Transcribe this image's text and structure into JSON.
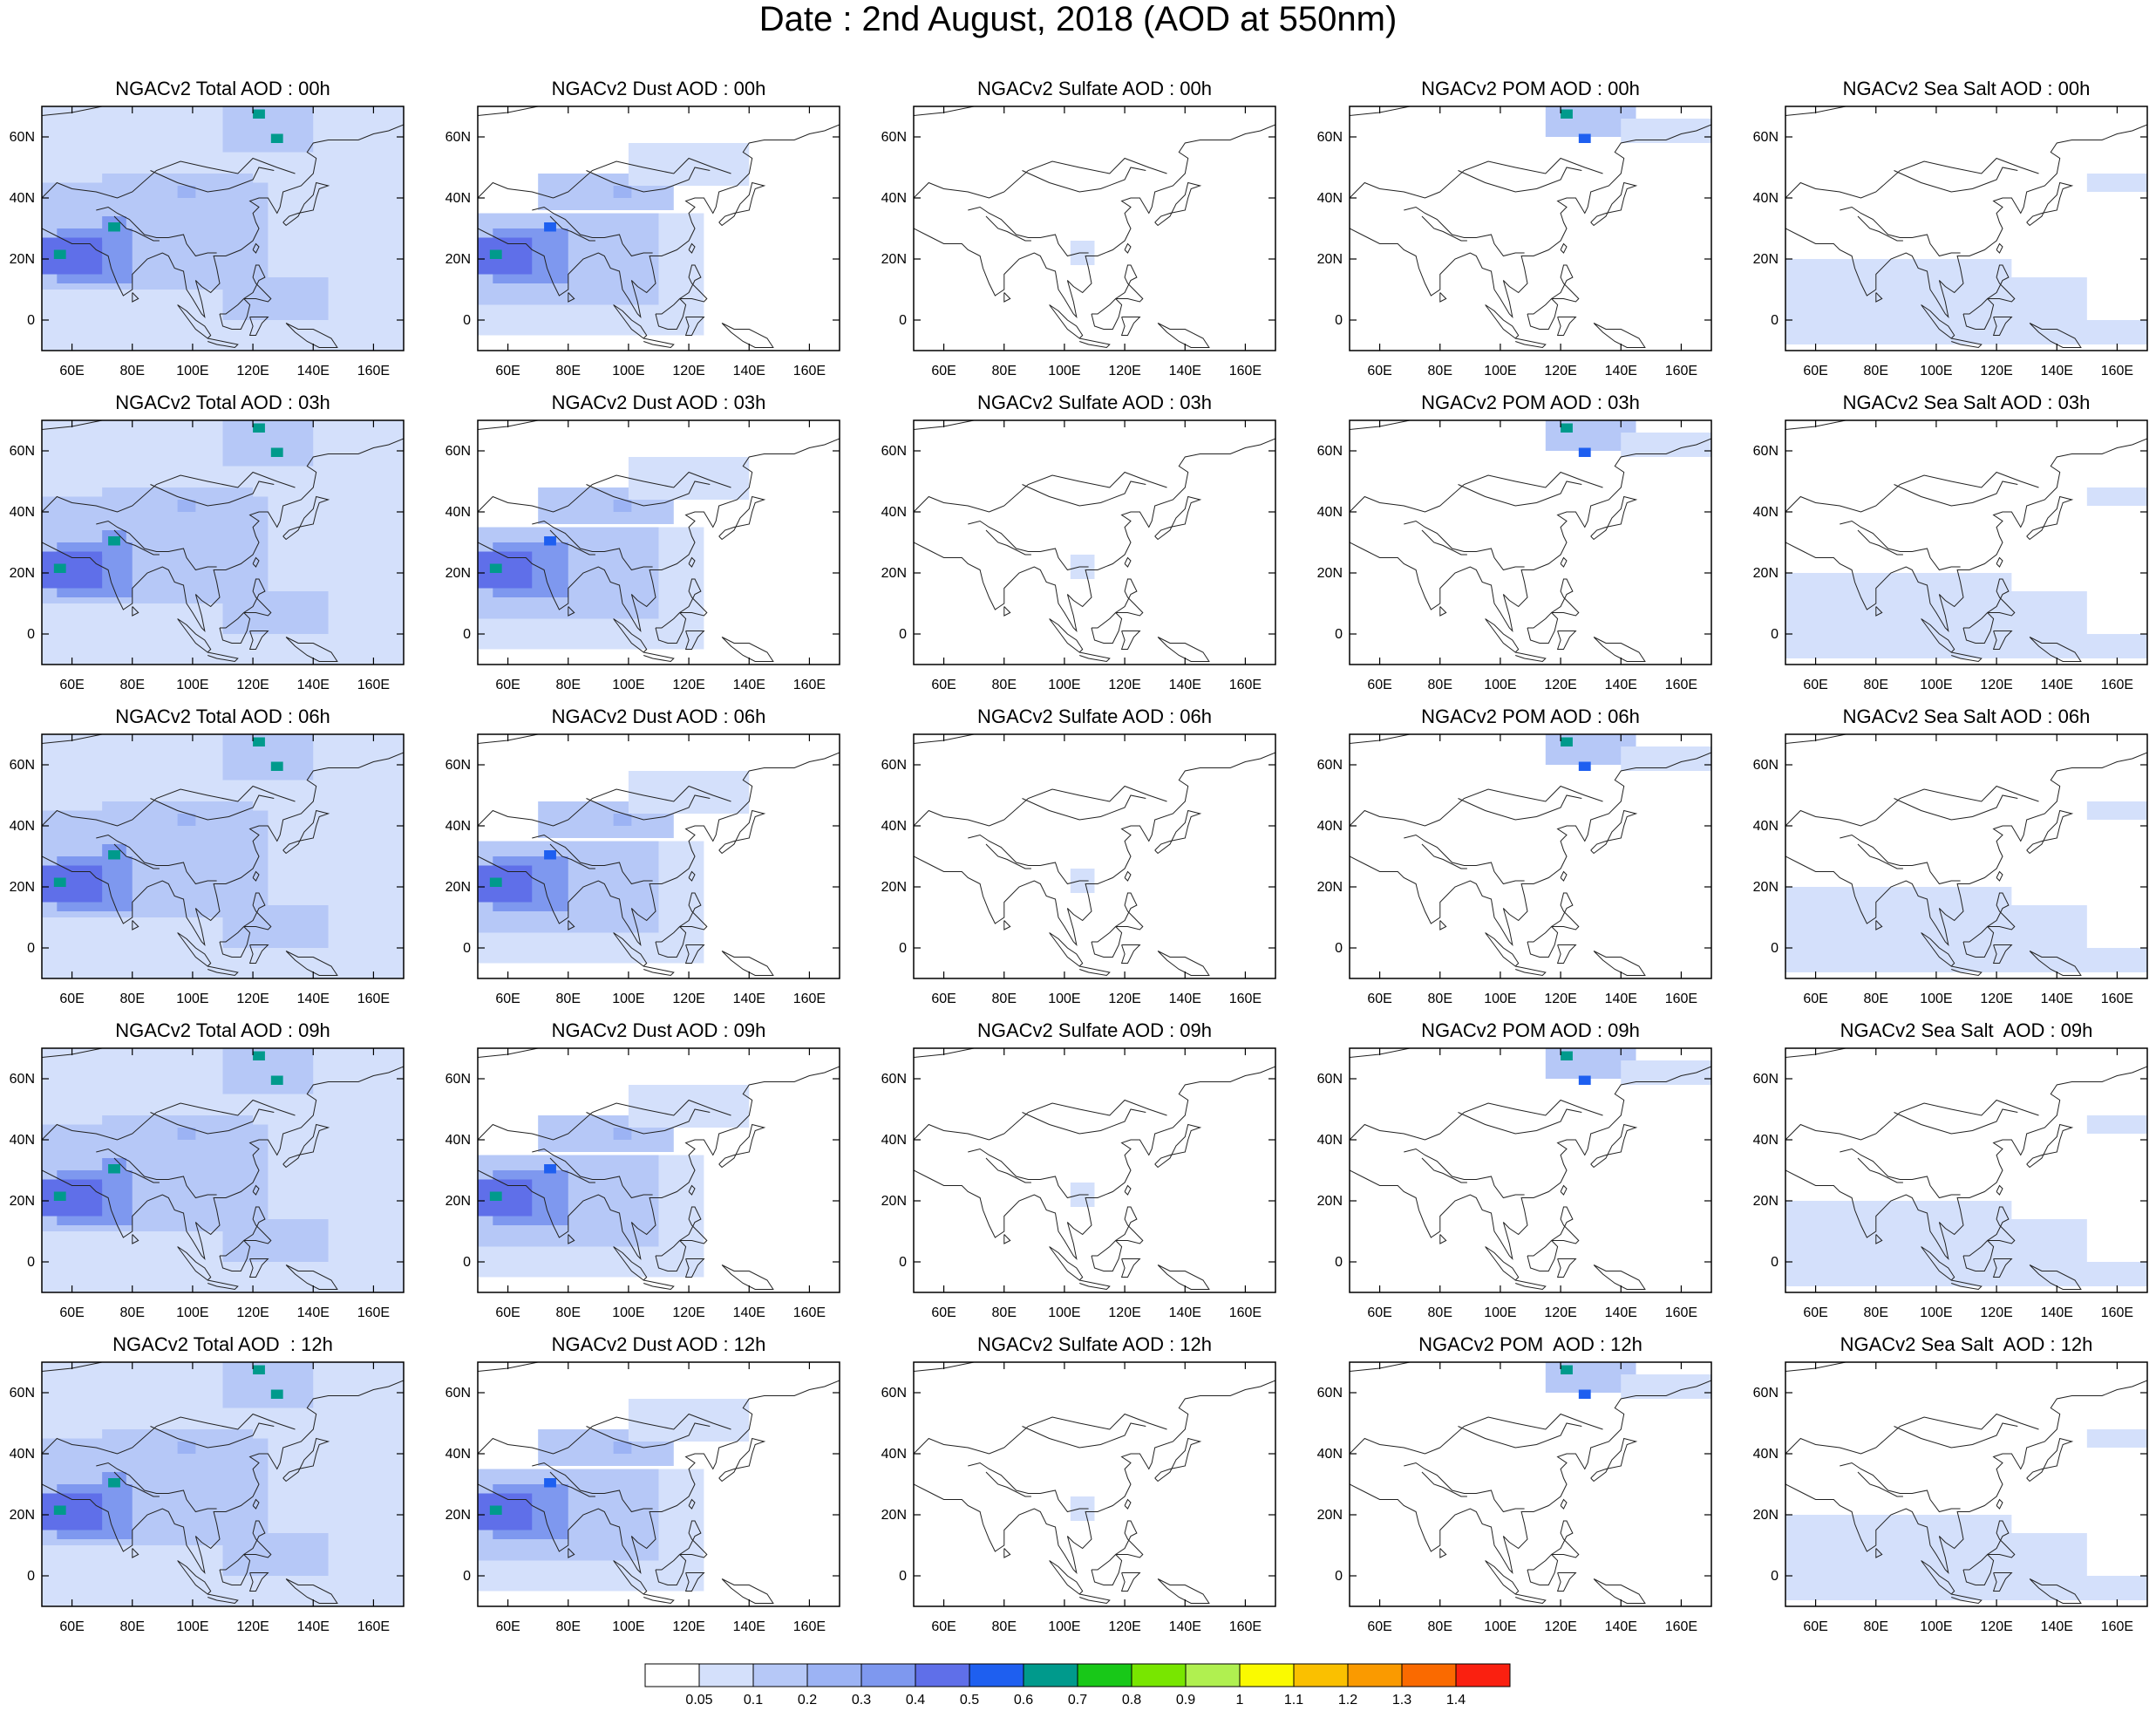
{
  "title": "Date : 2nd August, 2018 (AOD at 550nm)",
  "colors": {
    "levels": [
      "#ffffff",
      "#d4e0fb",
      "#b6c8f7",
      "#9cb3f4",
      "#7e98ef",
      "#5f6fe9",
      "#1e5ff0",
      "#009a8c",
      "#18c818",
      "#78e600",
      "#b0f050",
      "#fafa00",
      "#fac000",
      "#fa9a00",
      "#fa6a00",
      "#fa2010"
    ]
  },
  "colorbar": {
    "labels": [
      "0.05",
      "0.1",
      "0.2",
      "0.3",
      "0.4",
      "0.5",
      "0.6",
      "0.7",
      "0.8",
      "0.9",
      "1",
      "1.1",
      "1.2",
      "1.3",
      "1.4"
    ]
  },
  "chart_data": {
    "type": "heatmap",
    "x_ticks": [
      "60E",
      "80E",
      "100E",
      "120E",
      "140E",
      "160E"
    ],
    "x_tick_values": [
      60,
      80,
      100,
      120,
      140,
      160
    ],
    "y_ticks": [
      "60N",
      "40N",
      "20N",
      "0"
    ],
    "y_tick_values": [
      60,
      40,
      20,
      0
    ],
    "xlim": [
      50,
      170
    ],
    "ylim": [
      -10,
      70
    ],
    "panels": [
      {
        "title": "NGACv2 Total AOD : 00h",
        "field": "total"
      },
      {
        "title": "NGACv2 Dust AOD : 00h",
        "field": "dust"
      },
      {
        "title": "NGACv2 Sulfate AOD : 00h",
        "field": "sulfate"
      },
      {
        "title": "NGACv2 POM AOD : 00h",
        "field": "pom"
      },
      {
        "title": "NGACv2 Sea Salt AOD : 00h",
        "field": "seasalt"
      },
      {
        "title": "NGACv2 Total AOD : 03h",
        "field": "total"
      },
      {
        "title": "NGACv2 Dust AOD : 03h",
        "field": "dust"
      },
      {
        "title": "NGACv2 Sulfate AOD : 03h",
        "field": "sulfate"
      },
      {
        "title": "NGACv2 POM AOD : 03h",
        "field": "pom"
      },
      {
        "title": "NGACv2 Sea Salt AOD : 03h",
        "field": "seasalt"
      },
      {
        "title": "NGACv2 Total AOD : 06h",
        "field": "total"
      },
      {
        "title": "NGACv2 Dust AOD : 06h",
        "field": "dust"
      },
      {
        "title": "NGACv2 Sulfate AOD : 06h",
        "field": "sulfate"
      },
      {
        "title": "NGACv2 POM AOD : 06h",
        "field": "pom"
      },
      {
        "title": "NGACv2 Sea Salt AOD : 06h",
        "field": "seasalt"
      },
      {
        "title": "NGACv2 Total AOD : 09h",
        "field": "total"
      },
      {
        "title": "NGACv2 Dust AOD : 09h",
        "field": "dust"
      },
      {
        "title": "NGACv2 Sulfate AOD : 09h",
        "field": "sulfate"
      },
      {
        "title": "NGACv2 POM AOD : 09h",
        "field": "pom"
      },
      {
        "title": "NGACv2 Sea Salt  AOD : 09h",
        "field": "seasalt"
      },
      {
        "title": "NGACv2 Total AOD  : 12h",
        "field": "total"
      },
      {
        "title": "NGACv2 Dust AOD : 12h",
        "field": "dust"
      },
      {
        "title": "NGACv2 Sulfate AOD : 12h",
        "field": "sulfate"
      },
      {
        "title": "NGACv2 POM  AOD : 12h",
        "field": "pom"
      },
      {
        "title": "NGACv2 Sea Salt  AOD : 12h",
        "field": "seasalt"
      }
    ],
    "fields": {
      "total": [
        {
          "lon": 50,
          "lat": -5,
          "w": 120,
          "h": 45,
          "level": 1
        },
        {
          "lon": 50,
          "lat": -10,
          "w": 120,
          "h": 80,
          "level": 1
        },
        {
          "lon": 50,
          "lat": 10,
          "w": 75,
          "h": 35,
          "level": 2
        },
        {
          "lon": 55,
          "lat": 12,
          "w": 25,
          "h": 18,
          "level": 4
        },
        {
          "lon": 50,
          "lat": 15,
          "w": 20,
          "h": 12,
          "level": 5
        },
        {
          "lon": 70,
          "lat": 26,
          "w": 8,
          "h": 8,
          "level": 4
        },
        {
          "lon": 54,
          "lat": 20,
          "w": 4,
          "h": 3,
          "level": 7
        },
        {
          "lon": 72,
          "lat": 29,
          "w": 4,
          "h": 3,
          "level": 7
        },
        {
          "lon": 70,
          "lat": 38,
          "w": 50,
          "h": 10,
          "level": 2
        },
        {
          "lon": 95,
          "lat": 40,
          "w": 6,
          "h": 4,
          "level": 3
        },
        {
          "lon": 110,
          "lat": 55,
          "w": 30,
          "h": 15,
          "level": 2
        },
        {
          "lon": 120,
          "lat": 66,
          "w": 4,
          "h": 3,
          "level": 7
        },
        {
          "lon": 126,
          "lat": 58,
          "w": 4,
          "h": 3,
          "level": 7
        },
        {
          "lon": 110,
          "lat": 0,
          "w": 35,
          "h": 14,
          "level": 2
        }
      ],
      "dust": [
        {
          "lon": 50,
          "lat": -5,
          "w": 75,
          "h": 40,
          "level": 1
        },
        {
          "lon": 50,
          "lat": 5,
          "w": 60,
          "h": 30,
          "level": 2
        },
        {
          "lon": 55,
          "lat": 12,
          "w": 25,
          "h": 18,
          "level": 4
        },
        {
          "lon": 50,
          "lat": 15,
          "w": 18,
          "h": 12,
          "level": 5
        },
        {
          "lon": 70,
          "lat": 36,
          "w": 45,
          "h": 12,
          "level": 2
        },
        {
          "lon": 95,
          "lat": 40,
          "w": 6,
          "h": 4,
          "level": 3
        },
        {
          "lon": 100,
          "lat": 44,
          "w": 40,
          "h": 14,
          "level": 1
        },
        {
          "lon": 54,
          "lat": 20,
          "w": 4,
          "h": 3,
          "level": 7
        },
        {
          "lon": 72,
          "lat": 29,
          "w": 4,
          "h": 3,
          "level": 6
        }
      ],
      "sulfate": [
        {
          "lon": 102,
          "lat": 18,
          "w": 8,
          "h": 8,
          "level": 1
        }
      ],
      "pom": [
        {
          "lon": 115,
          "lat": 60,
          "w": 30,
          "h": 10,
          "level": 2
        },
        {
          "lon": 120,
          "lat": 66,
          "w": 4,
          "h": 3,
          "level": 7
        },
        {
          "lon": 126,
          "lat": 58,
          "w": 4,
          "h": 3,
          "level": 6
        },
        {
          "lon": 140,
          "lat": 58,
          "w": 30,
          "h": 8,
          "level": 1
        }
      ],
      "seasalt": [
        {
          "lon": 50,
          "lat": 0,
          "w": 75,
          "h": 20,
          "level": 1
        },
        {
          "lon": 110,
          "lat": 0,
          "w": 40,
          "h": 14,
          "level": 1
        },
        {
          "lon": 50,
          "lat": -8,
          "w": 120,
          "h": 8,
          "level": 1
        },
        {
          "lon": 150,
          "lat": 42,
          "w": 20,
          "h": 6,
          "level": 1
        }
      ]
    }
  }
}
